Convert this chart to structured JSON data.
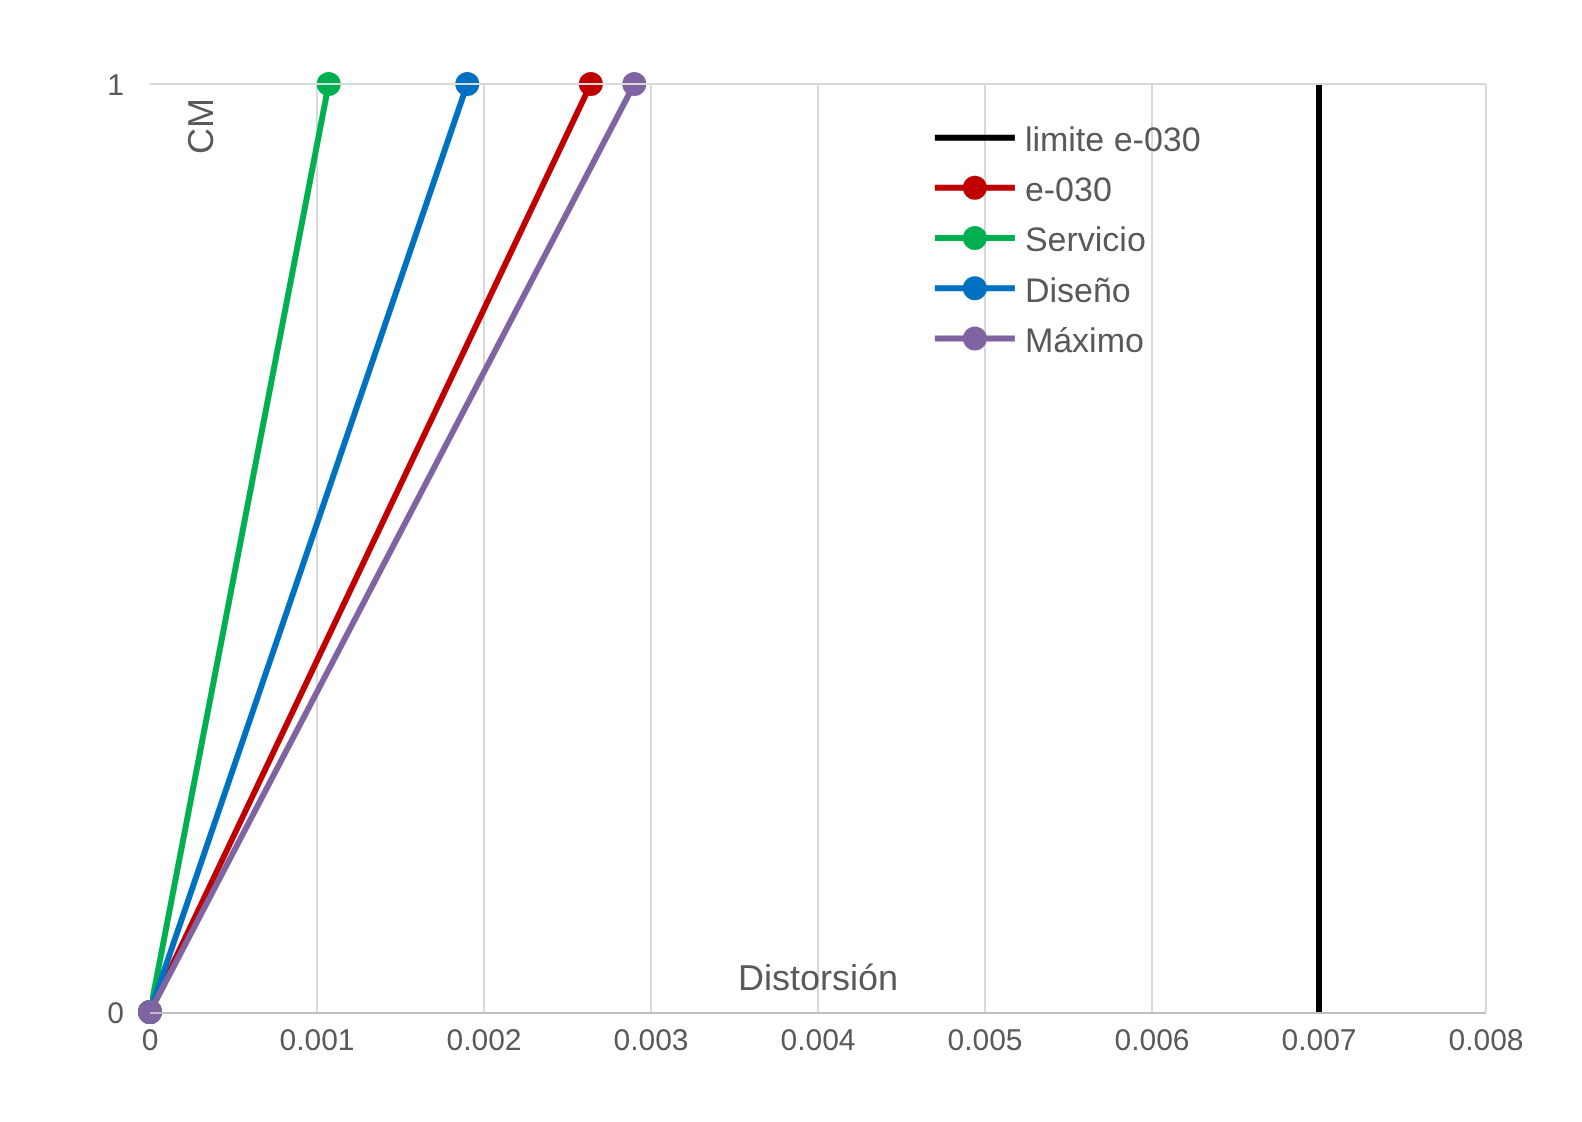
{
  "chart_data": {
    "type": "line",
    "xlabel": "Distorsión",
    "ylabel": "CM",
    "series": [
      {
        "name": "limite e-030",
        "color": "#000000",
        "x": [
          0.007,
          0.007
        ],
        "values": [
          0,
          1
        ],
        "marker": "none"
      },
      {
        "name": "e-030",
        "color": "#c00000",
        "x": [
          0,
          0.00264
        ],
        "values": [
          0,
          1
        ],
        "marker": "circle"
      },
      {
        "name": "Servicio",
        "color": "#00b050",
        "x": [
          0,
          0.00107
        ],
        "values": [
          0,
          1
        ],
        "marker": "circle"
      },
      {
        "name": "Diseño",
        "color": "#0070c0",
        "x": [
          0,
          0.0019
        ],
        "values": [
          0,
          1
        ],
        "marker": "circle"
      },
      {
        "name": "Máximo",
        "color": "#8064a2",
        "x": [
          0,
          0.0029
        ],
        "values": [
          0,
          1
        ],
        "marker": "circle"
      }
    ],
    "xlim": [
      0,
      0.008
    ],
    "xticks": [
      0,
      0.001,
      0.002,
      0.003,
      0.004,
      0.005,
      0.006,
      0.007,
      0.008
    ],
    "ylim": [
      0,
      1
    ],
    "yticks": [
      0,
      1
    ],
    "grid": "x",
    "legend": "top right",
    "line_style": "solid"
  }
}
